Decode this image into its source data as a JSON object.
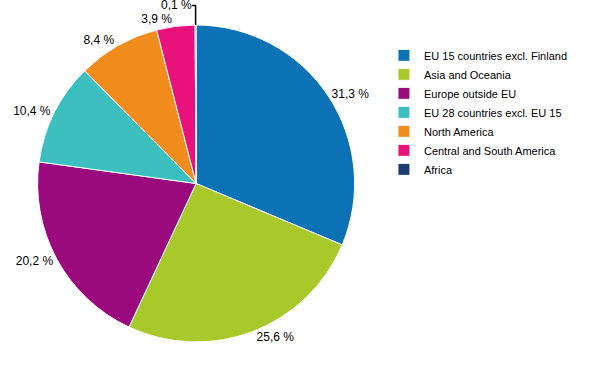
{
  "chart_data": {
    "type": "pie",
    "categories": [
      "EU 15 countries excl. Finland",
      "Asia and Oceania",
      "Europe outside EU",
      "EU 28 countries excl. EU 15",
      "North America",
      "Central and South America",
      "Africa"
    ],
    "values": [
      31.3,
      25.6,
      20.2,
      10.4,
      8.4,
      3.9,
      0.1
    ],
    "value_labels": [
      "31,3 %",
      "25,6 %",
      "20,2 %",
      "10,4 %",
      "8,4 %",
      "3,9 %",
      "0,1 %"
    ],
    "colors": [
      "#0a72b5",
      "#a9c92b",
      "#9b0a7d",
      "#3dbfbf",
      "#f28c1c",
      "#e8127a",
      "#1a3c6e"
    ],
    "data_labels": true,
    "legend": "right"
  }
}
